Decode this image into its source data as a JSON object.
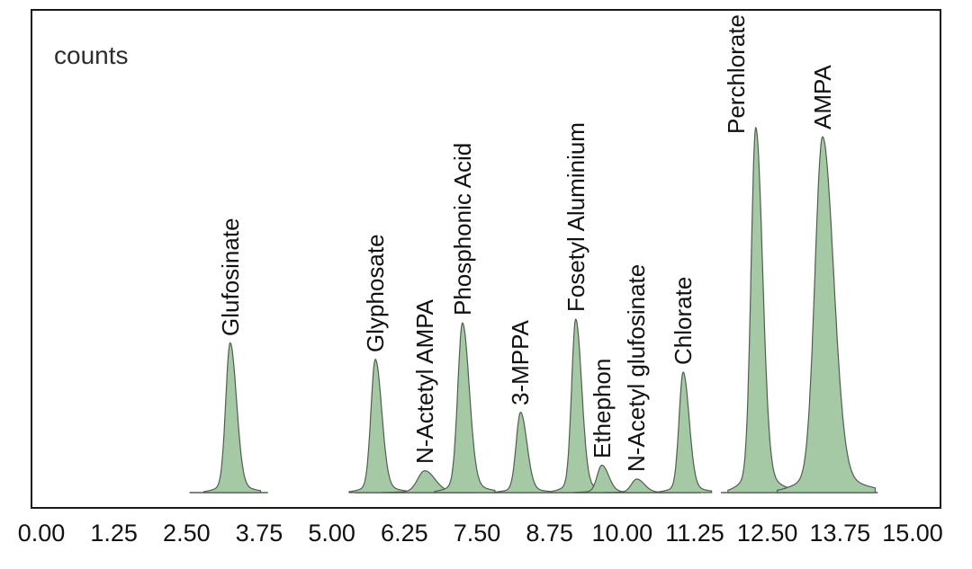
{
  "chart": {
    "counts_label": "counts"
  },
  "chart_data": {
    "type": "area",
    "subtype": "chromatogram",
    "title": "",
    "xlabel": "",
    "ylabel": "counts",
    "xlim": [
      0,
      15
    ],
    "ylim_relative": [
      0,
      100
    ],
    "grid": false,
    "legend": "none",
    "x_ticks": [
      "0.00",
      "1.25",
      "2.50",
      "3.75",
      "5.00",
      "6.25",
      "7.50",
      "8.75",
      "10.00",
      "11.25",
      "12.50",
      "13.75",
      "15.00"
    ],
    "peaks": [
      {
        "name": "Glufosinate",
        "rt": 3.25,
        "height": 41,
        "sigma": 0.075
      },
      {
        "name": "Glyphosate",
        "rt": 5.75,
        "height": 36.5,
        "sigma": 0.075
      },
      {
        "name": "N-Actetyl AMPA",
        "rt": 6.6,
        "height": 6,
        "sigma": 0.12
      },
      {
        "name": "Phosphonic Acid",
        "rt": 7.25,
        "height": 46.5,
        "sigma": 0.08
      },
      {
        "name": "3-MPPA",
        "rt": 8.25,
        "height": 22,
        "sigma": 0.075
      },
      {
        "name": "Fosetyl Aluminium",
        "rt": 9.2,
        "height": 47.5,
        "sigma": 0.07
      },
      {
        "name": "Ethephon",
        "rt": 9.65,
        "height": 7.5,
        "sigma": 0.08
      },
      {
        "name": "N-Acetyl glufosinate",
        "rt": 10.25,
        "height": 3.7,
        "sigma": 0.09
      },
      {
        "name": "Chlorate",
        "rt": 11.05,
        "height": 33,
        "sigma": 0.07
      },
      {
        "name": "Perchlorate",
        "rt": 12.3,
        "height": 100,
        "sigma": 0.08
      },
      {
        "name": "AMPA",
        "rt": 13.45,
        "height": 97.5,
        "sigma": 0.13
      }
    ],
    "baseline_segments": [
      [
        2.55,
        3.9
      ],
      [
        5.4,
        11.35
      ],
      [
        11.7,
        14.4
      ]
    ],
    "colors": {
      "peak_fill": "#a5c8a5",
      "peak_stroke": "#4f5f4f",
      "axis": "#1a1a1a",
      "text": "#111111"
    }
  }
}
